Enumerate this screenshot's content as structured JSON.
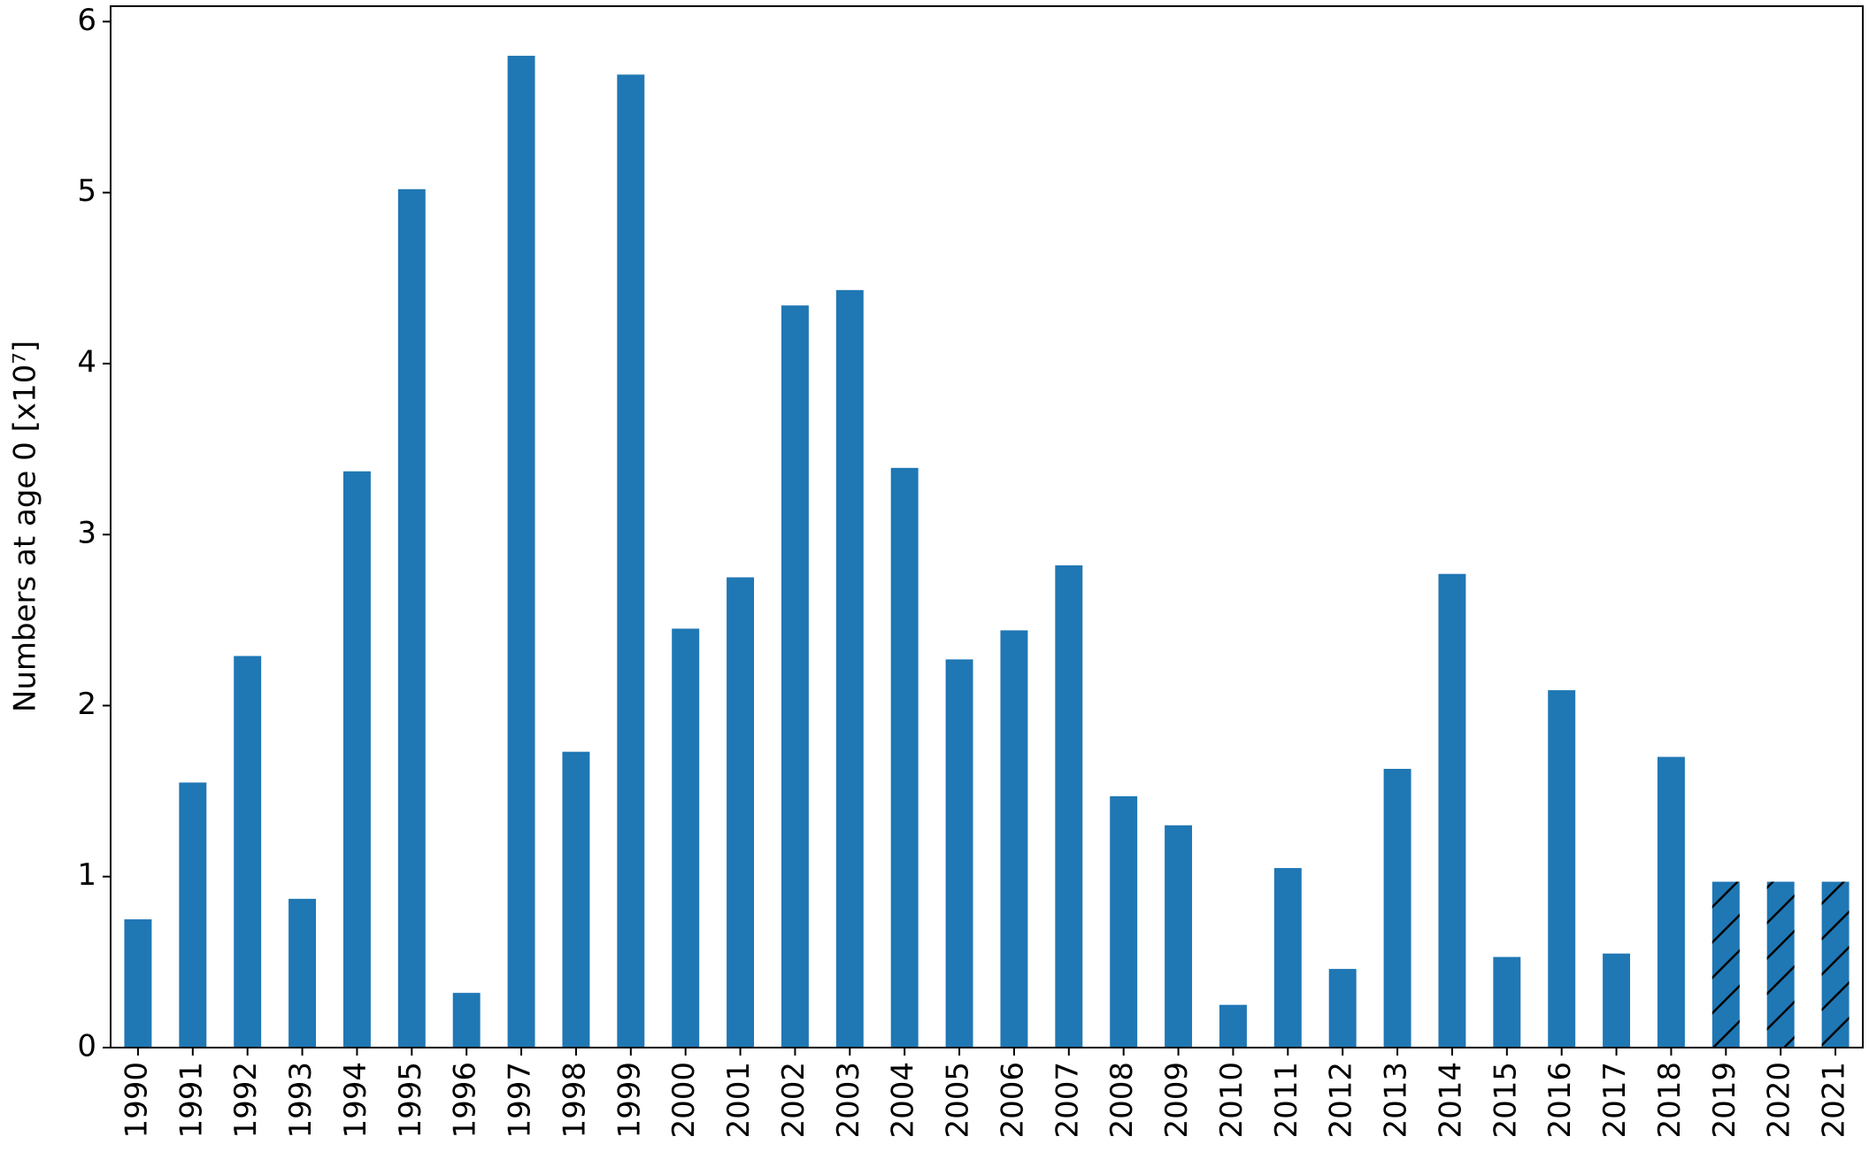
{
  "chart_data": {
    "type": "bar",
    "ylabel": "Numbers at age 0 [x10⁷]",
    "categories": [
      "1990",
      "1991",
      "1992",
      "1993",
      "1994",
      "1995",
      "1996",
      "1997",
      "1998",
      "1999",
      "2000",
      "2001",
      "2002",
      "2003",
      "2004",
      "2005",
      "2006",
      "2007",
      "2008",
      "2009",
      "2010",
      "2011",
      "2012",
      "2013",
      "2014",
      "2015",
      "2016",
      "2017",
      "2018",
      "2019",
      "2020",
      "2021"
    ],
    "values": [
      0.75,
      1.55,
      2.29,
      0.87,
      3.37,
      5.02,
      0.32,
      5.8,
      1.73,
      5.69,
      2.45,
      2.75,
      4.34,
      4.43,
      3.39,
      2.27,
      2.44,
      2.82,
      1.47,
      1.3,
      0.25,
      1.05,
      0.46,
      1.63,
      2.77,
      0.53,
      2.09,
      0.55,
      1.7,
      0.97,
      0.97,
      0.97
    ],
    "hatched": [
      false,
      false,
      false,
      false,
      false,
      false,
      false,
      false,
      false,
      false,
      false,
      false,
      false,
      false,
      false,
      false,
      false,
      false,
      false,
      false,
      false,
      false,
      false,
      false,
      false,
      false,
      false,
      false,
      false,
      true,
      true,
      true
    ],
    "color": "#1f77b4",
    "ylim": [
      0,
      6.09
    ],
    "yticks": [
      0,
      1,
      2,
      3,
      4,
      5,
      6
    ],
    "grid": false
  }
}
